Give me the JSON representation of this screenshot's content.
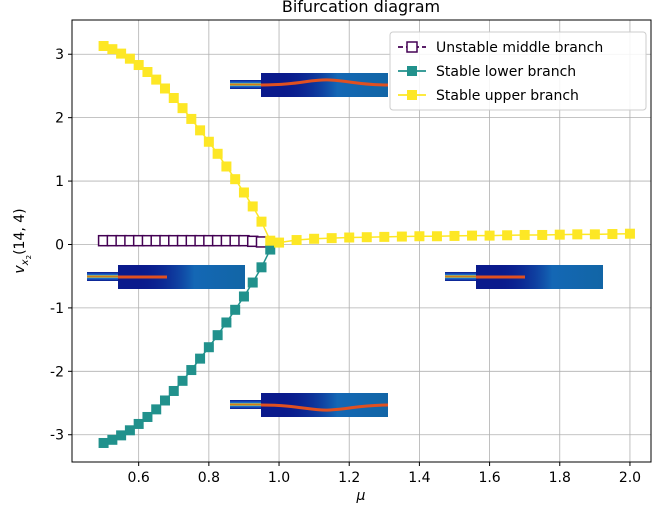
{
  "chart_data": {
    "type": "line",
    "title": "Bifurcation diagram",
    "xlabel": "μ",
    "ylabel_parts": [
      "v",
      "x",
      "2",
      "(14, 4)"
    ],
    "xlim": [
      0.41,
      2.06
    ],
    "ylim": [
      -3.43,
      3.54
    ],
    "xticks": [
      0.6,
      0.8,
      {
        "value": 1,
        "label": "1.0"
      },
      1.2,
      1.4,
      1.6,
      1.8,
      {
        "value": 2,
        "label": "2.0"
      }
    ],
    "yticks": [
      -3,
      -2,
      -1,
      0,
      1,
      2,
      3
    ],
    "grid": true,
    "legend": "upper right",
    "series": [
      {
        "name": "Unstable middle branch",
        "color": "#440154",
        "marker_fill": false,
        "dashed": true,
        "x": [
          0.5,
          0.525,
          0.55,
          0.575,
          0.6,
          0.625,
          0.65,
          0.675,
          0.7,
          0.725,
          0.75,
          0.775,
          0.8,
          0.825,
          0.85,
          0.875,
          0.9,
          0.925,
          0.95
        ],
        "values": [
          0.06,
          0.06,
          0.06,
          0.06,
          0.06,
          0.06,
          0.06,
          0.06,
          0.06,
          0.06,
          0.06,
          0.06,
          0.06,
          0.06,
          0.06,
          0.06,
          0.06,
          0.05,
          0.04
        ]
      },
      {
        "name": "Stable lower branch",
        "color": "#21918c",
        "marker_fill": true,
        "dashed": false,
        "x": [
          0.5,
          0.525,
          0.55,
          0.575,
          0.6,
          0.625,
          0.65,
          0.675,
          0.7,
          0.725,
          0.75,
          0.775,
          0.8,
          0.825,
          0.85,
          0.875,
          0.9,
          0.925,
          0.95,
          0.975
        ],
        "values": [
          -3.13,
          -3.08,
          -3.01,
          -2.93,
          -2.83,
          -2.72,
          -2.6,
          -2.46,
          -2.31,
          -2.15,
          -1.98,
          -1.8,
          -1.62,
          -1.43,
          -1.23,
          -1.03,
          -0.82,
          -0.6,
          -0.36,
          -0.08
        ]
      },
      {
        "name": "Stable upper branch",
        "color": "#fde725",
        "marker_fill": true,
        "dashed": false,
        "x": [
          0.5,
          0.525,
          0.55,
          0.575,
          0.6,
          0.625,
          0.65,
          0.675,
          0.7,
          0.725,
          0.75,
          0.775,
          0.8,
          0.825,
          0.85,
          0.875,
          0.9,
          0.925,
          0.95,
          0.975,
          1,
          1.05,
          1.1,
          1.15,
          1.2,
          1.25,
          1.3,
          1.35,
          1.4,
          1.45,
          1.5,
          1.55,
          1.6,
          1.65,
          1.7,
          1.75,
          1.8,
          1.85,
          1.9,
          1.95,
          2
        ],
        "values": [
          3.13,
          3.08,
          3.01,
          2.93,
          2.83,
          2.72,
          2.6,
          2.46,
          2.31,
          2.15,
          1.98,
          1.8,
          1.62,
          1.43,
          1.23,
          1.03,
          0.82,
          0.6,
          0.36,
          0.06,
          0.03,
          0.07,
          0.09,
          0.1,
          0.11,
          0.115,
          0.12,
          0.125,
          0.13,
          0.13,
          0.135,
          0.14,
          0.14,
          0.145,
          0.15,
          0.15,
          0.155,
          0.16,
          0.16,
          0.165,
          0.17
        ]
      }
    ]
  }
}
